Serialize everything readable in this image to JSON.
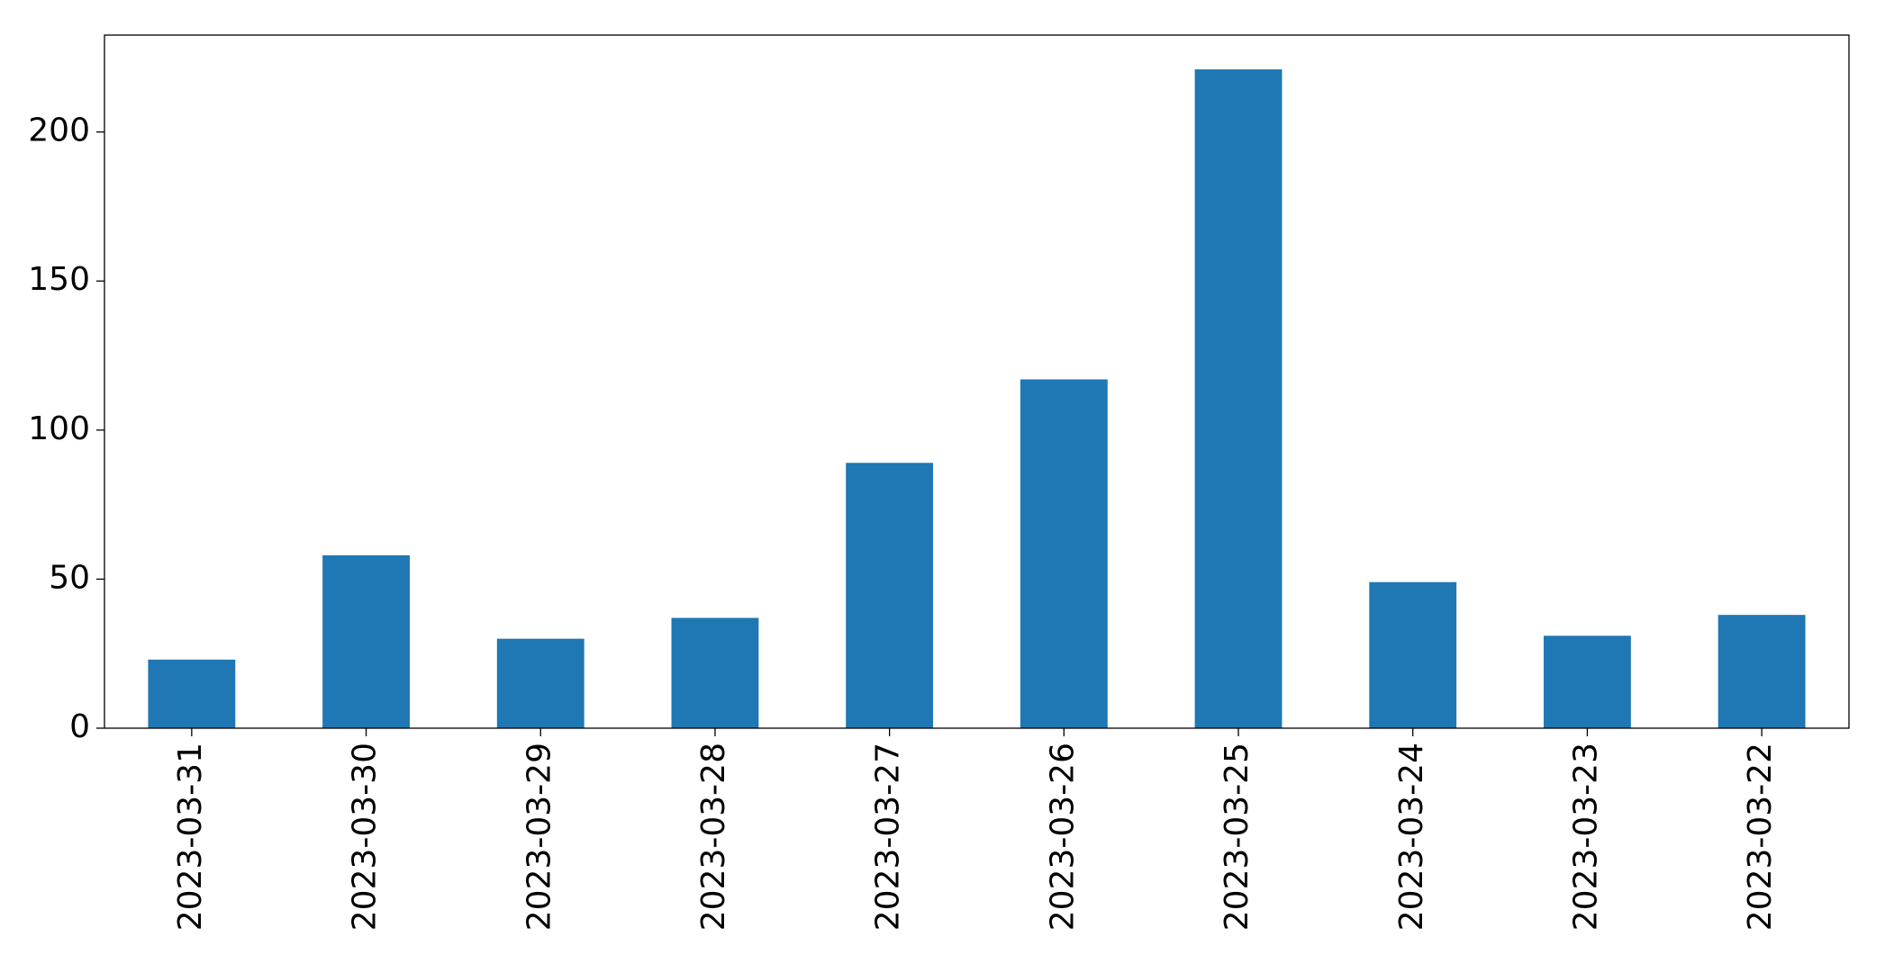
{
  "chart_data": {
    "type": "bar",
    "categories": [
      "2023-03-31",
      "2023-03-30",
      "2023-03-29",
      "2023-03-28",
      "2023-03-27",
      "2023-03-26",
      "2023-03-25",
      "2023-03-24",
      "2023-03-23",
      "2023-03-22"
    ],
    "values": [
      23,
      58,
      30,
      37,
      89,
      117,
      221,
      49,
      31,
      38
    ],
    "color": "#1f77b4",
    "ylim": [
      0,
      232.5
    ],
    "yticks": [
      0,
      50,
      100,
      150,
      200
    ],
    "grid": false
  }
}
